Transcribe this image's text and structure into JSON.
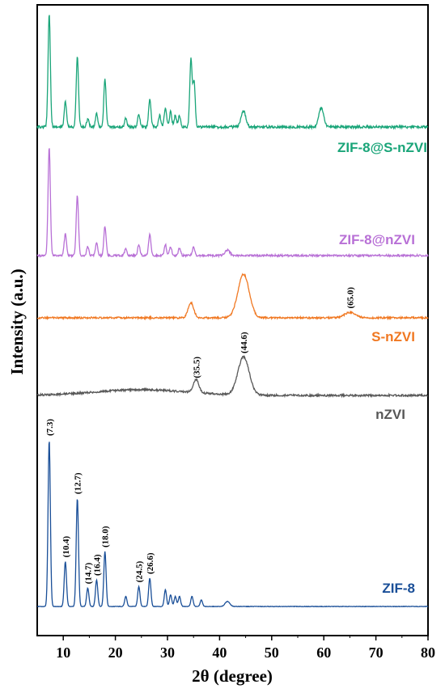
{
  "chart_data": {
    "type": "line",
    "xlabel": "2θ (degree)",
    "ylabel": "Intensity (a.u.)",
    "xlim": [
      5,
      80
    ],
    "x_ticks": [
      "10",
      "20",
      "30",
      "40",
      "50",
      "60",
      "70",
      "80"
    ],
    "y_ticks_shown": false,
    "series": [
      {
        "name": "ZIF-8@S-nZVI",
        "color": "#1aa579",
        "peaks": [
          {
            "x": 7.3,
            "h": 1.0
          },
          {
            "x": 10.4,
            "h": 0.22
          },
          {
            "x": 12.7,
            "h": 0.62
          },
          {
            "x": 14.7,
            "h": 0.07
          },
          {
            "x": 16.4,
            "h": 0.12
          },
          {
            "x": 18.0,
            "h": 0.42
          },
          {
            "x": 22.0,
            "h": 0.08
          },
          {
            "x": 24.5,
            "h": 0.11
          },
          {
            "x": 26.6,
            "h": 0.25
          },
          {
            "x": 28.5,
            "h": 0.1
          },
          {
            "x": 29.6,
            "h": 0.17
          },
          {
            "x": 30.6,
            "h": 0.14
          },
          {
            "x": 31.5,
            "h": 0.1
          },
          {
            "x": 32.3,
            "h": 0.1
          },
          {
            "x": 34.5,
            "h": 0.6
          },
          {
            "x": 35.1,
            "h": 0.4
          },
          {
            "x": 44.6,
            "h": 0.14
          },
          {
            "x": 59.5,
            "h": 0.17
          }
        ]
      },
      {
        "name": "ZIF-8@nZVI",
        "color": "#b870d6",
        "peaks": [
          {
            "x": 7.3,
            "h": 1.0
          },
          {
            "x": 10.4,
            "h": 0.2
          },
          {
            "x": 12.7,
            "h": 0.55
          },
          {
            "x": 14.7,
            "h": 0.08
          },
          {
            "x": 16.4,
            "h": 0.12
          },
          {
            "x": 18.0,
            "h": 0.27
          },
          {
            "x": 22.0,
            "h": 0.06
          },
          {
            "x": 24.5,
            "h": 0.1
          },
          {
            "x": 26.6,
            "h": 0.2
          },
          {
            "x": 29.6,
            "h": 0.1
          },
          {
            "x": 30.6,
            "h": 0.08
          },
          {
            "x": 32.3,
            "h": 0.07
          },
          {
            "x": 35.0,
            "h": 0.08
          },
          {
            "x": 41.5,
            "h": 0.05
          }
        ]
      },
      {
        "name": "S-nZVI",
        "color": "#f07822",
        "peaks": [
          {
            "x": 34.5,
            "h": 0.35
          },
          {
            "x": 44.6,
            "h": 1.0
          },
          {
            "x": 65.0,
            "h": 0.12
          }
        ]
      },
      {
        "name": "nZVI",
        "color": "#575757",
        "peaks": [
          {
            "x": 35.5,
            "h": 0.35
          },
          {
            "x": 44.6,
            "h": 1.0
          }
        ]
      },
      {
        "name": "ZIF-8",
        "color": "#1a4f98",
        "peaks": [
          {
            "x": 7.3,
            "h": 1.0
          },
          {
            "x": 10.4,
            "h": 0.27
          },
          {
            "x": 12.7,
            "h": 0.65
          },
          {
            "x": 14.7,
            "h": 0.11
          },
          {
            "x": 16.4,
            "h": 0.16
          },
          {
            "x": 18.0,
            "h": 0.33
          },
          {
            "x": 22.0,
            "h": 0.06
          },
          {
            "x": 24.5,
            "h": 0.12
          },
          {
            "x": 26.6,
            "h": 0.17
          },
          {
            "x": 29.6,
            "h": 0.1
          },
          {
            "x": 30.6,
            "h": 0.07
          },
          {
            "x": 31.5,
            "h": 0.06
          },
          {
            "x": 32.3,
            "h": 0.06
          },
          {
            "x": 34.7,
            "h": 0.06
          },
          {
            "x": 36.5,
            "h": 0.04
          },
          {
            "x": 41.5,
            "h": 0.03
          }
        ]
      }
    ],
    "annotations": [
      {
        "series": "S-nZVI",
        "x": 65.0,
        "text": "(65.0)"
      },
      {
        "series": "nZVI",
        "x": 35.5,
        "text": "(35.5)"
      },
      {
        "series": "nZVI",
        "x": 44.6,
        "text": "(44.6)"
      },
      {
        "series": "ZIF-8",
        "x": 7.3,
        "text": "(7.3)"
      },
      {
        "series": "ZIF-8",
        "x": 10.4,
        "text": "(10.4)"
      },
      {
        "series": "ZIF-8",
        "x": 12.7,
        "text": "(12.7)"
      },
      {
        "series": "ZIF-8",
        "x": 14.7,
        "text": "(14.7)"
      },
      {
        "series": "ZIF-8",
        "x": 16.4,
        "text": "(16.4)"
      },
      {
        "series": "ZIF-8",
        "x": 18.0,
        "text": "(18.0)"
      },
      {
        "series": "ZIF-8",
        "x": 24.5,
        "text": "(24.5)"
      },
      {
        "series": "ZIF-8",
        "x": 26.6,
        "text": "(26.6)"
      }
    ]
  }
}
